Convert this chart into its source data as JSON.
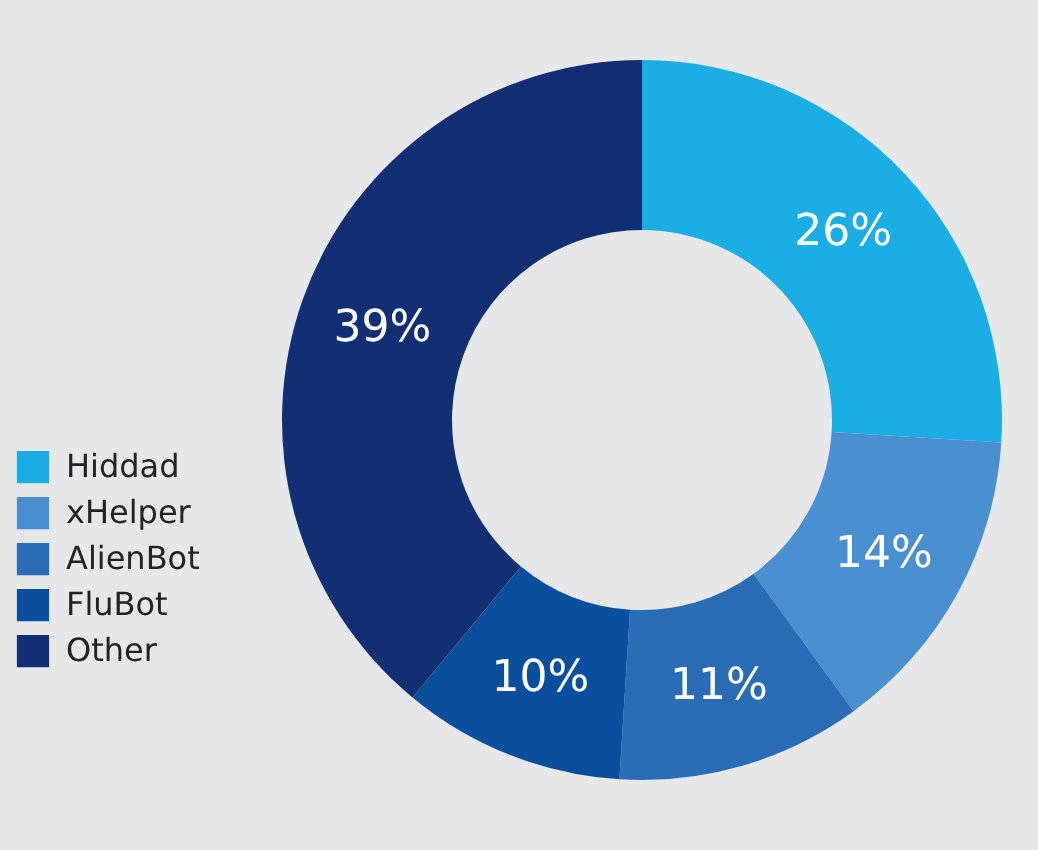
{
  "chart_data": {
    "type": "donut",
    "categories": [
      "Hiddad",
      "xHelper",
      "AlienBot",
      "FluBot",
      "Other"
    ],
    "values": [
      26,
      14,
      11,
      10,
      39
    ],
    "value_labels": [
      "26%",
      "14%",
      "11%",
      "10%",
      "39%"
    ],
    "colors": [
      "#1aaee5",
      "#4a90d0",
      "#2b6db5",
      "#0a4f9e",
      "#132f74"
    ],
    "legend": "bottom left"
  }
}
